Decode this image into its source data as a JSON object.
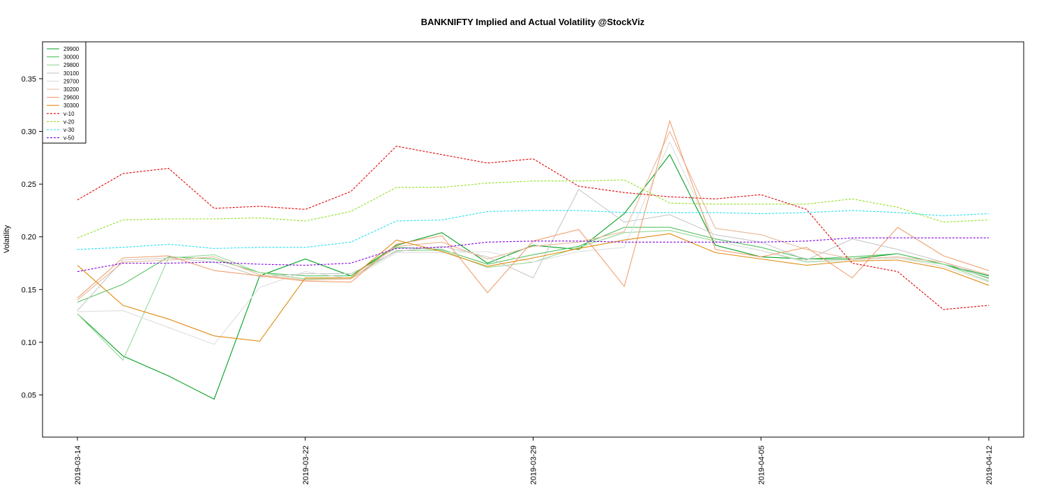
{
  "chart_data": {
    "type": "line",
    "title": "BANKNIFTY Implied and Actual Volatility @StockViz",
    "xlabel": "",
    "ylabel": "Volatility",
    "x": [
      "2019-03-14",
      "2019-03-15",
      "2019-03-18",
      "2019-03-19",
      "2019-03-20",
      "2019-03-22",
      "2019-03-25",
      "2019-03-26",
      "2019-03-27",
      "2019-03-28",
      "2019-03-29",
      "2019-04-01",
      "2019-04-02",
      "2019-04-03",
      "2019-04-04",
      "2019-04-05",
      "2019-04-08",
      "2019-04-09",
      "2019-04-10",
      "2019-04-11",
      "2019-04-12"
    ],
    "x_ticks": [
      "2019-03-14",
      "2019-03-22",
      "2019-03-29",
      "2019-04-05",
      "2019-04-12"
    ],
    "y_ticks": [
      "0.05",
      "0.10",
      "0.15",
      "0.20",
      "0.25",
      "0.30",
      "0.35"
    ],
    "ylim": [
      0.01,
      0.385
    ],
    "grid": false,
    "legend_position": "top-left",
    "series": [
      {
        "name": "29900",
        "color": "#00a020",
        "style": "solid",
        "values": [
          0.127,
          0.087,
          0.068,
          0.046,
          0.163,
          0.179,
          0.163,
          0.192,
          0.204,
          0.175,
          0.192,
          0.188,
          0.222,
          0.278,
          0.192,
          0.181,
          0.179,
          0.179,
          0.184,
          0.174,
          0.163
        ]
      },
      {
        "name": "30000",
        "color": "#55c060",
        "style": "solid",
        "values": [
          0.138,
          0.155,
          0.181,
          0.179,
          0.166,
          0.163,
          0.163,
          0.19,
          0.188,
          0.174,
          0.183,
          0.191,
          0.209,
          0.209,
          0.198,
          0.19,
          0.179,
          0.181,
          0.184,
          0.174,
          0.161
        ]
      },
      {
        "name": "29800",
        "color": "#95d895",
        "style": "solid",
        "values": [
          0.127,
          0.083,
          0.18,
          0.183,
          0.166,
          0.16,
          0.161,
          0.187,
          0.187,
          0.171,
          0.176,
          0.19,
          0.204,
          0.206,
          0.196,
          0.187,
          0.176,
          0.178,
          0.18,
          0.174,
          0.158
        ]
      },
      {
        "name": "30100",
        "color": "#c8c8c8",
        "style": "solid",
        "values": [
          0.13,
          0.178,
          0.18,
          0.176,
          0.162,
          0.165,
          0.165,
          0.186,
          0.191,
          0.181,
          0.161,
          0.245,
          0.214,
          0.221,
          0.202,
          0.195,
          0.178,
          0.198,
          0.188,
          0.176,
          0.16
        ]
      },
      {
        "name": "29700",
        "color": "#dedede",
        "style": "solid",
        "values": [
          0.129,
          0.13,
          0.114,
          0.098,
          0.152,
          0.167,
          0.16,
          0.185,
          0.185,
          0.186,
          0.176,
          0.186,
          0.19,
          0.29,
          0.196,
          0.187,
          0.177,
          0.178,
          0.18,
          0.172,
          0.157
        ]
      },
      {
        "name": "30200",
        "color": "#e8b898",
        "style": "solid",
        "values": [
          0.14,
          0.176,
          0.178,
          0.181,
          0.164,
          0.159,
          0.16,
          0.191,
          0.195,
          0.179,
          0.191,
          0.195,
          0.205,
          0.3,
          0.208,
          0.202,
          0.188,
          0.179,
          0.181,
          0.176,
          0.164
        ]
      },
      {
        "name": "29600",
        "color": "#f0a070",
        "style": "solid",
        "values": [
          0.142,
          0.18,
          0.182,
          0.168,
          0.163,
          0.158,
          0.157,
          0.193,
          0.201,
          0.147,
          0.196,
          0.207,
          0.153,
          0.31,
          0.188,
          0.181,
          0.19,
          0.161,
          0.209,
          0.182,
          0.168
        ]
      },
      {
        "name": "30300",
        "color": "#e08a10",
        "style": "solid",
        "values": [
          0.173,
          0.135,
          0.122,
          0.106,
          0.101,
          0.161,
          0.161,
          0.197,
          0.186,
          0.172,
          0.18,
          0.189,
          0.197,
          0.203,
          0.185,
          0.179,
          0.173,
          0.177,
          0.178,
          0.17,
          0.154
        ]
      },
      {
        "name": "v-10",
        "color": "#e00000",
        "style": "dashed",
        "values": [
          0.235,
          0.26,
          0.265,
          0.227,
          0.229,
          0.226,
          0.243,
          0.286,
          0.278,
          0.27,
          0.274,
          0.248,
          0.242,
          0.238,
          0.236,
          0.24,
          0.226,
          0.175,
          0.167,
          0.131,
          0.135
        ]
      },
      {
        "name": "v-20",
        "color": "#90e020",
        "style": "dashed",
        "values": [
          0.199,
          0.216,
          0.217,
          0.217,
          0.218,
          0.215,
          0.224,
          0.247,
          0.247,
          0.251,
          0.253,
          0.253,
          0.254,
          0.232,
          0.231,
          0.231,
          0.231,
          0.236,
          0.228,
          0.214,
          0.216
        ]
      },
      {
        "name": "v-30",
        "color": "#20e0f0",
        "style": "dashed",
        "values": [
          0.188,
          0.19,
          0.193,
          0.189,
          0.19,
          0.19,
          0.195,
          0.215,
          0.216,
          0.224,
          0.225,
          0.225,
          0.223,
          0.223,
          0.223,
          0.222,
          0.223,
          0.225,
          0.223,
          0.22,
          0.222
        ]
      },
      {
        "name": "v-50",
        "color": "#8000e0",
        "style": "dashed",
        "values": [
          0.167,
          0.175,
          0.175,
          0.176,
          0.174,
          0.173,
          0.175,
          0.189,
          0.19,
          0.195,
          0.196,
          0.196,
          0.195,
          0.195,
          0.195,
          0.195,
          0.196,
          0.199,
          0.199,
          0.199,
          0.199
        ]
      }
    ]
  }
}
